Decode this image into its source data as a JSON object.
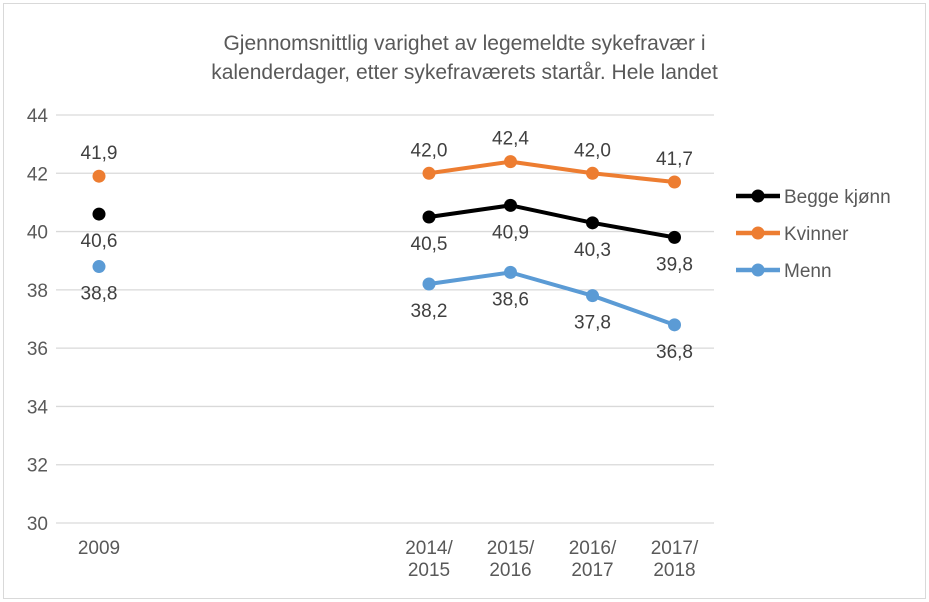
{
  "colors": {
    "background": "#FFFFFF",
    "border": "#D9D9D9",
    "grid": "#D9D9D9",
    "axis_text": "#595959",
    "data_label": "#404040",
    "title": "#595959"
  },
  "chart_data": {
    "type": "line",
    "title": "Gjennomsnittlig varighet av legemeldte sykefravær i kalenderdager, etter sykefraværets startår. Hele landet",
    "title_lines": [
      "Gjennomsnittlig varighet av legemeldte sykefravær i",
      "kalenderdager, etter sykefraværets startår. Hele landet"
    ],
    "categories": [
      "2009",
      "2014/2015",
      "2015/2016",
      "2016/2017",
      "2017/2018"
    ],
    "series": [
      {
        "name": "Begge kjønn",
        "slug": "begge-kjonn",
        "color": "#000000",
        "values": [
          40.6,
          40.5,
          40.9,
          40.3,
          39.8
        ],
        "label_position": "below"
      },
      {
        "name": "Kvinner",
        "slug": "kvinner",
        "color": "#ED7D31",
        "values": [
          41.9,
          42.0,
          42.4,
          42.0,
          41.7
        ],
        "label_position": "above"
      },
      {
        "name": "Menn",
        "slug": "menn",
        "color": "#5B9BD5",
        "values": [
          38.8,
          38.2,
          38.6,
          37.8,
          36.8
        ],
        "label_position": "below"
      }
    ],
    "xlabel": "",
    "ylabel": "",
    "ylim": [
      30,
      44
    ],
    "ytick_step": 2,
    "grid": true,
    "legend_position": "right",
    "decimal_separator": ",",
    "line_starts_at_index": 1
  }
}
